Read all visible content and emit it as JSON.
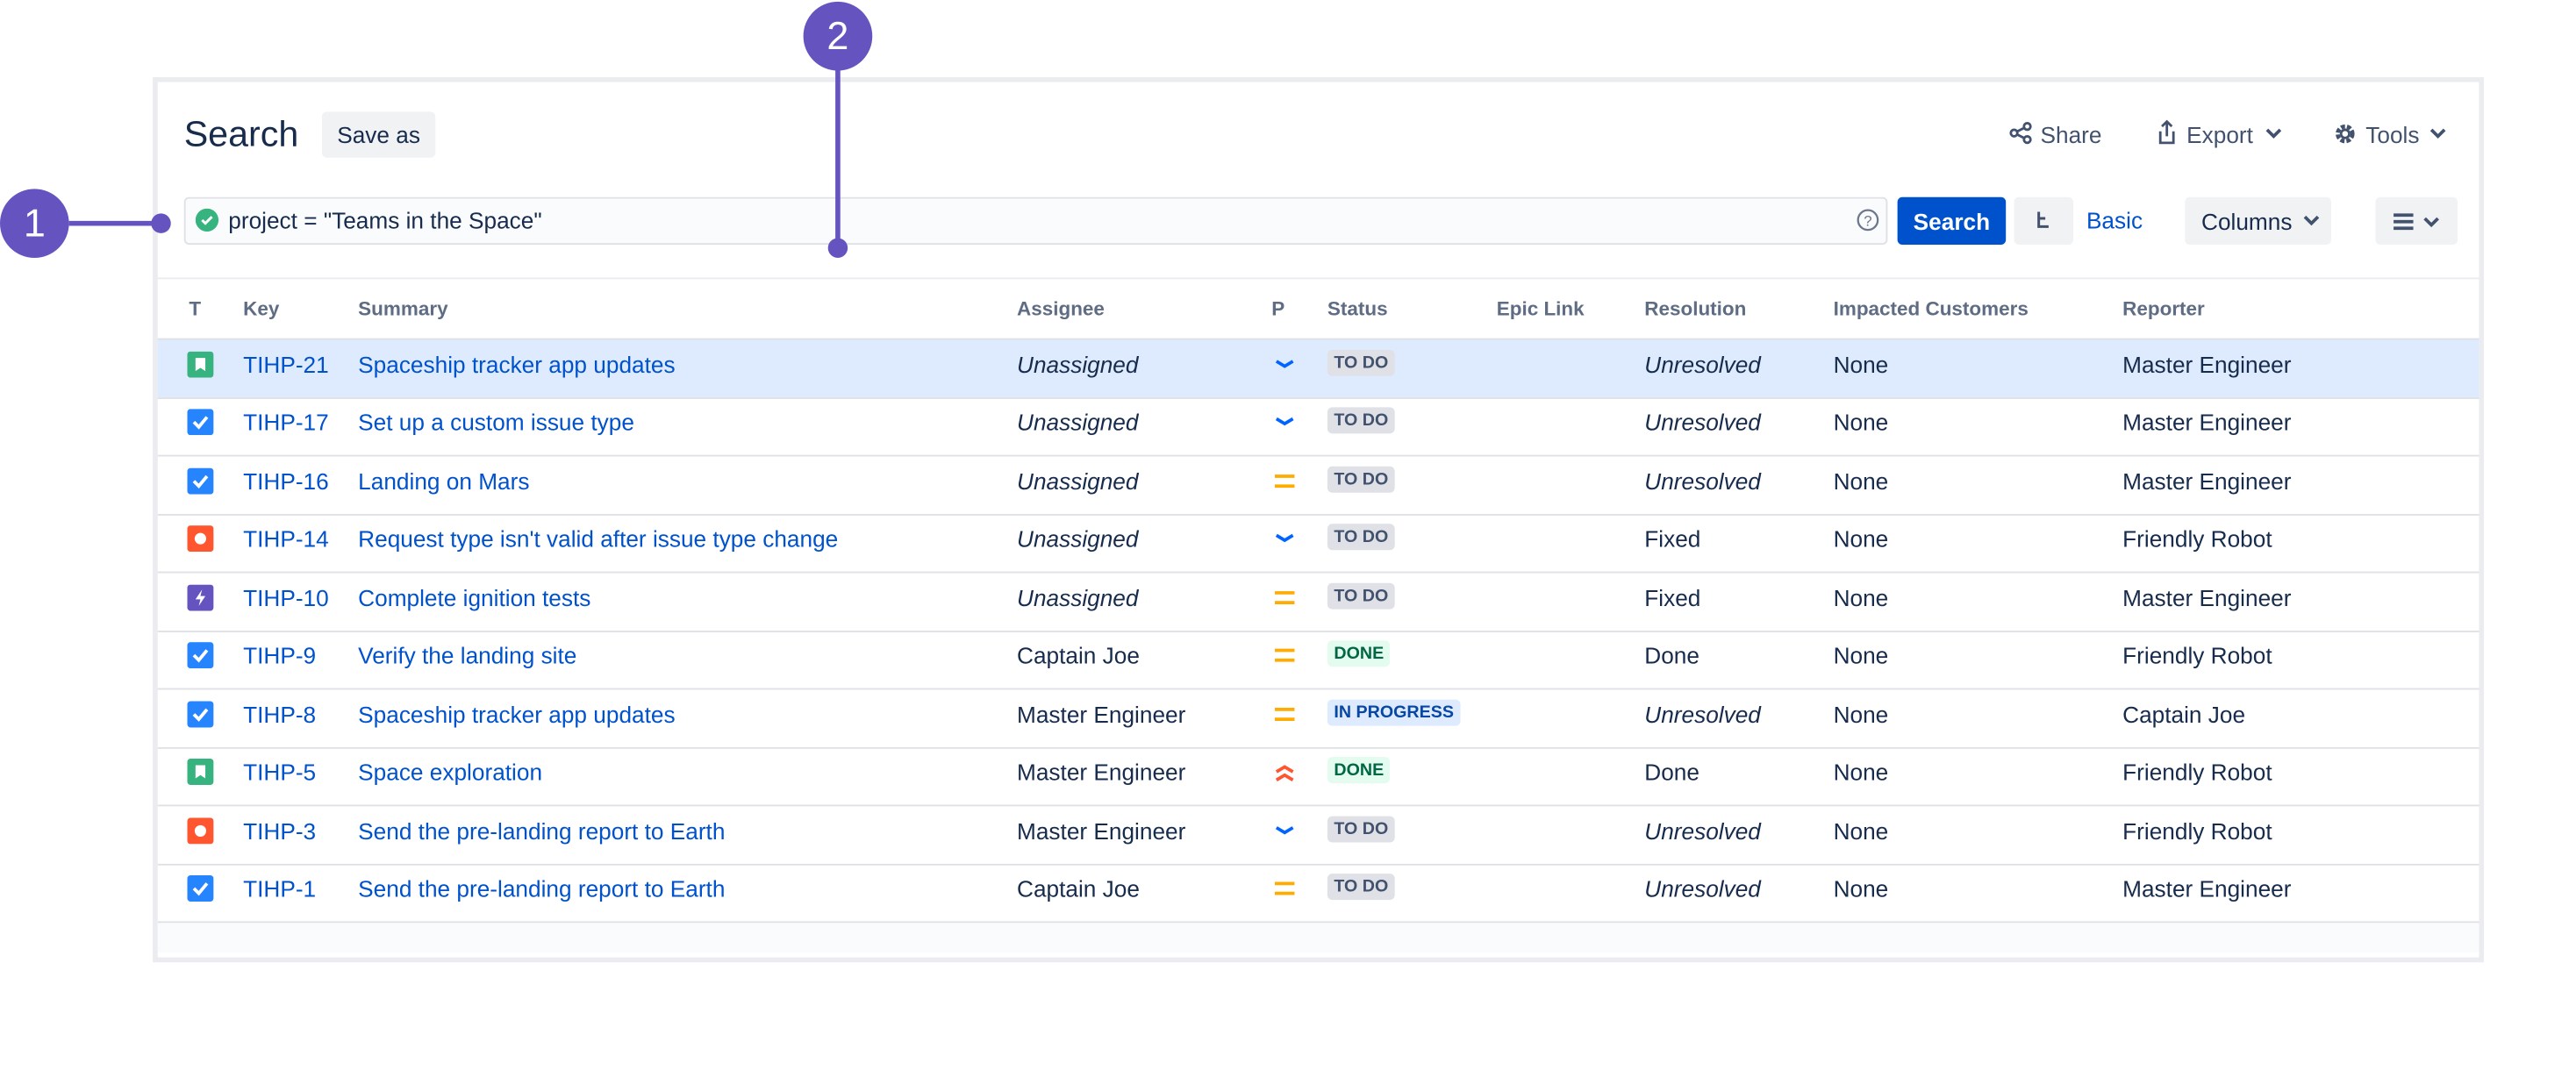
{
  "callouts": [
    "1",
    "2"
  ],
  "header": {
    "title": "Search",
    "save_as": "Save as",
    "actions": [
      "Share",
      "Export",
      "Tools"
    ]
  },
  "query": {
    "text": "project = \"Teams in the Space\"",
    "search_button": "Search",
    "mode": "Basic",
    "columns_button": "Columns"
  },
  "table": {
    "columns": [
      "T",
      "Key",
      "Summary",
      "Assignee",
      "P",
      "Status",
      "Epic Link",
      "Resolution",
      "Impacted Customers",
      "Reporter"
    ],
    "rows": [
      [
        "TIHP-21",
        "Spaceship tracker app updates",
        "Unassigned",
        "TO DO",
        "Unresolved",
        "None",
        "Master Engineer"
      ],
      [
        "TIHP-17",
        "Set up a custom issue type",
        "Unassigned",
        "TO DO",
        "Unresolved",
        "None",
        "Master Engineer"
      ],
      [
        "TIHP-16",
        "Landing on Mars",
        "Unassigned",
        "TO DO",
        "Unresolved",
        "None",
        "Master Engineer"
      ],
      [
        "TIHP-14",
        "Request type isn't valid after issue type change",
        "Unassigned",
        "TO DO",
        "Fixed",
        "None",
        "Friendly Robot"
      ],
      [
        "TIHP-10",
        "Complete ignition tests",
        "Unassigned",
        "TO DO",
        "Fixed",
        "None",
        "Master Engineer"
      ],
      [
        "TIHP-9",
        "Verify the landing site",
        "Captain Joe",
        "DONE",
        "Done",
        "None",
        "Friendly Robot"
      ],
      [
        "TIHP-8",
        "Spaceship tracker app updates",
        "Master Engineer",
        "IN PROGRESS",
        "Unresolved",
        "None",
        "Captain Joe"
      ],
      [
        "TIHP-5",
        "Space exploration",
        "Master Engineer",
        "DONE",
        "Done",
        "None",
        "Friendly Robot"
      ],
      [
        "TIHP-3",
        "Send the pre-landing report to Earth",
        "Master Engineer",
        "TO DO",
        "Unresolved",
        "None",
        "Friendly Robot"
      ],
      [
        "TIHP-1",
        "Send the pre-landing report to Earth",
        "Captain Joe",
        "TO DO",
        "Unresolved",
        "None",
        "Master Engineer"
      ]
    ]
  }
}
